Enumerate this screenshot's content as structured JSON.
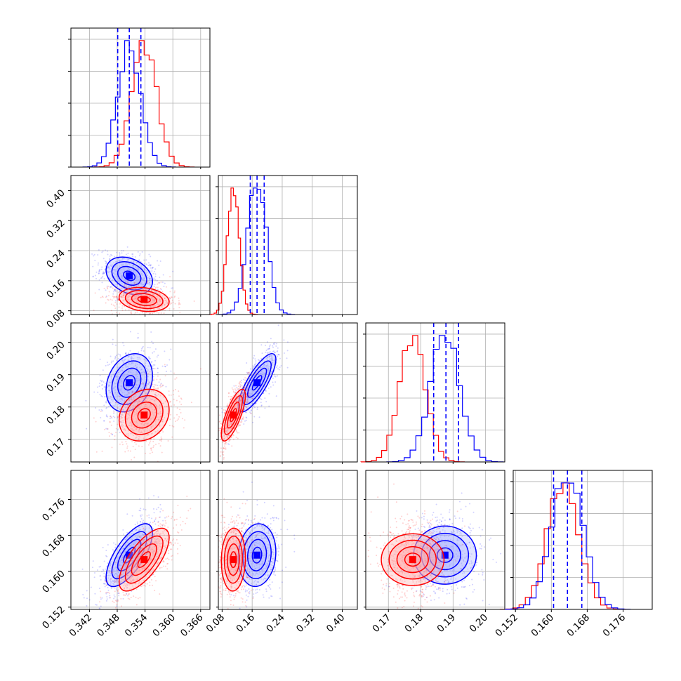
{
  "chart_data": {
    "type": "corner",
    "grid": true,
    "series": [
      {
        "color": "#0000ff",
        "marginal_shape": "gaussian",
        "means": [
          0.3506,
          0.173,
          0.1875,
          0.1636
        ],
        "sds": [
          0.0025,
          0.025,
          0.0045,
          0.0035
        ],
        "quantile_lines": [
          [
            0.3481,
            0.3506,
            0.3531
          ],
          [
            0.155,
            0.173,
            0.192
          ],
          [
            0.184,
            0.1878,
            0.1917
          ],
          [
            0.1605,
            0.1636,
            0.1668
          ]
        ]
      },
      {
        "color": "#ff0000",
        "means": [
          0.3538,
          0.11,
          0.1775,
          0.1626
        ],
        "sds": [
          0.0027,
          0.016,
          0.004,
          0.0035
        ]
      }
    ],
    "variables": [
      {
        "range": [
          0.338,
          0.368
        ],
        "ticks": [
          0.342,
          0.348,
          0.354,
          0.36,
          0.366
        ],
        "tick_labels": [
          "0.342",
          "0.348",
          "0.354",
          "0.360",
          "0.366"
        ]
      },
      {
        "range": [
          0.07,
          0.44
        ],
        "ticks": [
          0.08,
          0.16,
          0.24,
          0.32,
          0.4
        ],
        "tick_labels": [
          "0.08",
          "0.16",
          "0.24",
          "0.32",
          "0.40"
        ]
      },
      {
        "range": [
          0.163,
          0.206
        ],
        "ticks": [
          0.17,
          0.18,
          0.19,
          0.2
        ],
        "tick_labels": [
          "0.17",
          "0.18",
          "0.19",
          "0.20"
        ]
      },
      {
        "range": [
          0.1515,
          0.1825
        ],
        "ticks": [
          0.152,
          0.16,
          0.168,
          0.176
        ],
        "tick_labels": [
          "0.152",
          "0.160",
          "0.168",
          "0.176"
        ]
      }
    ],
    "correlations": {
      "blue": {
        "0-1": -0.3,
        "0-2": 0.25,
        "0-3": 0.7,
        "1-2": 0.8,
        "1-3": 0.1,
        "2-3": 0.0
      },
      "red": {
        "0-1": -0.2,
        "0-2": 0.2,
        "0-3": 0.7,
        "1-2": 0.75,
        "1-3": 0.05,
        "2-3": 0.0
      }
    },
    "contour_levels": [
      0.5,
      1.0,
      1.5,
      2.0
    ]
  }
}
